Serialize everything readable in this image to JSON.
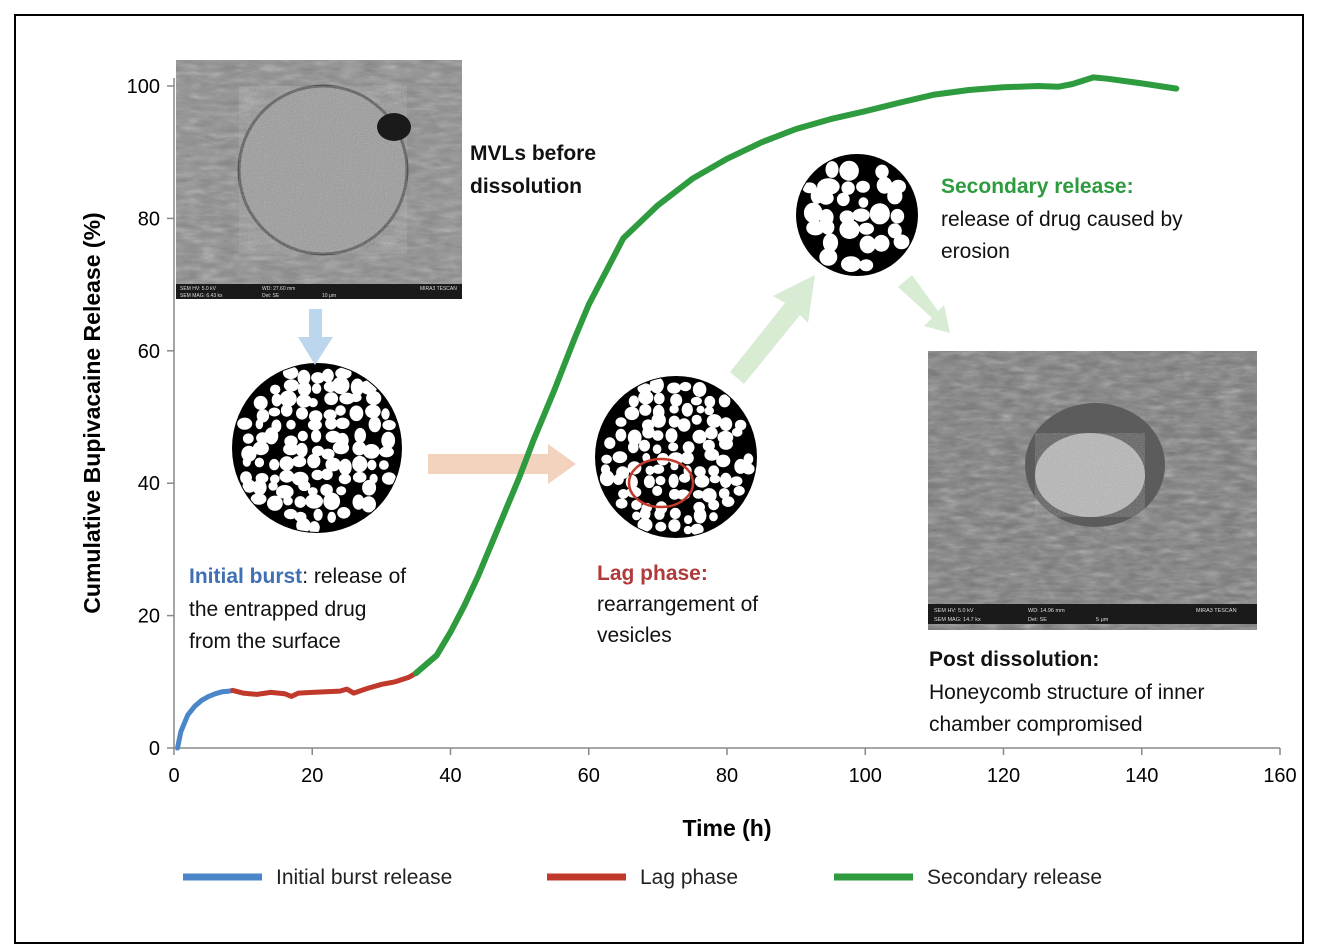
{
  "chart_data": {
    "type": "line",
    "xlabel": "Time (h)",
    "ylabel": "Cumulative Bupivacaine Release (%)",
    "xlim": [
      0,
      160
    ],
    "ylim": [
      0,
      100
    ],
    "xticks": [
      0,
      20,
      40,
      60,
      80,
      100,
      120,
      140,
      160
    ],
    "yticks": [
      0,
      20,
      40,
      60,
      80,
      100
    ],
    "grid": false,
    "legend_position": "bottom",
    "series": [
      {
        "name": "Initial burst release",
        "color": "#4a86c8",
        "x": [
          0.5,
          1,
          2,
          3,
          4,
          5,
          6,
          7,
          8,
          8.5
        ],
        "y": [
          0,
          2.5,
          5,
          6.3,
          7.2,
          7.8,
          8.2,
          8.5,
          8.6,
          8.7
        ]
      },
      {
        "name": "Lag phase",
        "color": "#c0392b",
        "x": [
          8.5,
          10,
          12,
          14,
          16,
          17,
          18,
          20,
          22,
          24,
          25,
          26,
          28,
          30,
          32,
          34,
          35
        ],
        "y": [
          8.7,
          8.3,
          8.1,
          8.4,
          8.2,
          7.8,
          8.3,
          8.4,
          8.5,
          8.6,
          8.9,
          8.3,
          9.0,
          9.6,
          10.0,
          10.7,
          11.3
        ]
      },
      {
        "name": "Secondary release",
        "color": "#2e9b3e",
        "x": [
          35,
          38,
          40,
          42,
          44,
          46,
          48,
          50,
          52,
          55,
          58,
          60,
          65,
          70,
          75,
          80,
          85,
          90,
          95,
          100,
          105,
          110,
          115,
          120,
          125,
          128,
          130,
          133,
          135,
          140,
          145
        ],
        "y": [
          11.3,
          14,
          17.5,
          21.5,
          26,
          31,
          36,
          41,
          46.5,
          54,
          62,
          67,
          77,
          82,
          86,
          89,
          91.5,
          93.5,
          95,
          96.2,
          97.5,
          98.7,
          99.4,
          99.8,
          100,
          99.9,
          100.3,
          101.3,
          101.1,
          100.4,
          99.6
        ]
      }
    ]
  },
  "annotations": {
    "mvl_before": [
      "MVLs before",
      "dissolution"
    ],
    "initial_burst": {
      "highlight": "Initial burst",
      "color": "#3f6fb5",
      "line1_rest": ": release of",
      "line2": "the entrapped drug",
      "line3": "from the surface"
    },
    "lag_phase": {
      "highlight": "Lag phase:",
      "color": "#b03a3a",
      "line2": "rearrangement of",
      "line3": "vesicles"
    },
    "secondary_release": {
      "highlight": "Secondary release:",
      "color": "#2e9b3e",
      "line2": "release of drug caused by",
      "line3": "erosion"
    },
    "post_dissolution": {
      "title": "Post dissolution:",
      "line2": "Honeycomb structure of inner",
      "line3": "chamber compromised"
    }
  },
  "sem_before": {
    "footer_left1": "SEM HV: 5.0 kV",
    "footer_mid1": "WD: 27.60 mm",
    "footer_right": "MIRA3 TESCAN",
    "footer_left2": "SEM MAG: 6.43 kx",
    "footer_mid2": "Det: SE",
    "footer_scale": "10 μm"
  },
  "sem_after": {
    "footer_left1": "SEM HV: 5.0 kV",
    "footer_mid1": "WD: 14.96 mm",
    "footer_right": "MIRA3 TESCAN",
    "footer_left2": "SEM MAG: 14.7 kx",
    "footer_mid2": "Det: SE",
    "footer_scale": "5 μm"
  },
  "colors": {
    "arrow_blue": "#bcd6ee",
    "arrow_orange": "#f3d3bd",
    "arrow_green": "#d7ecd3",
    "lag_circle": "#c0392b"
  }
}
